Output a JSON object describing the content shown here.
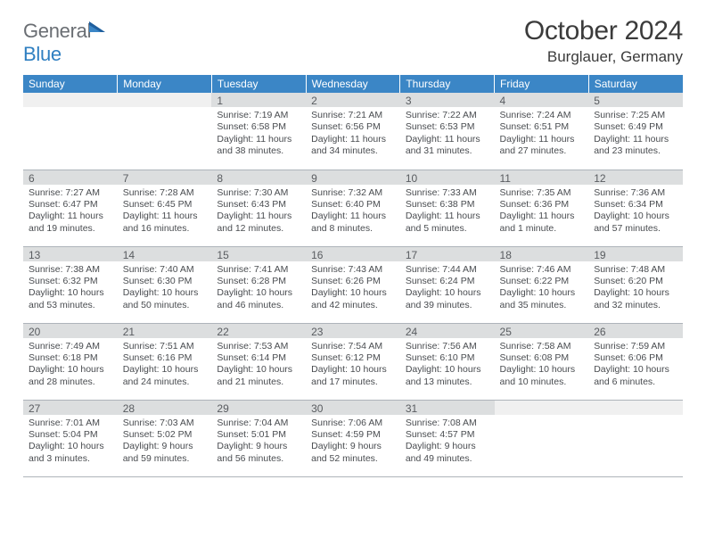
{
  "brand": {
    "part1": "General",
    "part2": "Blue"
  },
  "title": "October 2024",
  "location": "Burglauer, Germany",
  "colors": {
    "header_bg": "#3b86c6",
    "header_fg": "#ffffff",
    "daynum_bg": "#dcdedf",
    "daynum_fg": "#595c60",
    "text": "#494c50",
    "rule": "#aeb4ba",
    "logo_gray": "#6a6e73",
    "logo_blue": "#2f7fc1"
  },
  "weekdays": [
    "Sunday",
    "Monday",
    "Tuesday",
    "Wednesday",
    "Thursday",
    "Friday",
    "Saturday"
  ],
  "weeks": [
    [
      null,
      null,
      {
        "n": "1",
        "sr": "Sunrise: 7:19 AM",
        "ss": "Sunset: 6:58 PM",
        "dl": "Daylight: 11 hours and 38 minutes."
      },
      {
        "n": "2",
        "sr": "Sunrise: 7:21 AM",
        "ss": "Sunset: 6:56 PM",
        "dl": "Daylight: 11 hours and 34 minutes."
      },
      {
        "n": "3",
        "sr": "Sunrise: 7:22 AM",
        "ss": "Sunset: 6:53 PM",
        "dl": "Daylight: 11 hours and 31 minutes."
      },
      {
        "n": "4",
        "sr": "Sunrise: 7:24 AM",
        "ss": "Sunset: 6:51 PM",
        "dl": "Daylight: 11 hours and 27 minutes."
      },
      {
        "n": "5",
        "sr": "Sunrise: 7:25 AM",
        "ss": "Sunset: 6:49 PM",
        "dl": "Daylight: 11 hours and 23 minutes."
      }
    ],
    [
      {
        "n": "6",
        "sr": "Sunrise: 7:27 AM",
        "ss": "Sunset: 6:47 PM",
        "dl": "Daylight: 11 hours and 19 minutes."
      },
      {
        "n": "7",
        "sr": "Sunrise: 7:28 AM",
        "ss": "Sunset: 6:45 PM",
        "dl": "Daylight: 11 hours and 16 minutes."
      },
      {
        "n": "8",
        "sr": "Sunrise: 7:30 AM",
        "ss": "Sunset: 6:43 PM",
        "dl": "Daylight: 11 hours and 12 minutes."
      },
      {
        "n": "9",
        "sr": "Sunrise: 7:32 AM",
        "ss": "Sunset: 6:40 PM",
        "dl": "Daylight: 11 hours and 8 minutes."
      },
      {
        "n": "10",
        "sr": "Sunrise: 7:33 AM",
        "ss": "Sunset: 6:38 PM",
        "dl": "Daylight: 11 hours and 5 minutes."
      },
      {
        "n": "11",
        "sr": "Sunrise: 7:35 AM",
        "ss": "Sunset: 6:36 PM",
        "dl": "Daylight: 11 hours and 1 minute."
      },
      {
        "n": "12",
        "sr": "Sunrise: 7:36 AM",
        "ss": "Sunset: 6:34 PM",
        "dl": "Daylight: 10 hours and 57 minutes."
      }
    ],
    [
      {
        "n": "13",
        "sr": "Sunrise: 7:38 AM",
        "ss": "Sunset: 6:32 PM",
        "dl": "Daylight: 10 hours and 53 minutes."
      },
      {
        "n": "14",
        "sr": "Sunrise: 7:40 AM",
        "ss": "Sunset: 6:30 PM",
        "dl": "Daylight: 10 hours and 50 minutes."
      },
      {
        "n": "15",
        "sr": "Sunrise: 7:41 AM",
        "ss": "Sunset: 6:28 PM",
        "dl": "Daylight: 10 hours and 46 minutes."
      },
      {
        "n": "16",
        "sr": "Sunrise: 7:43 AM",
        "ss": "Sunset: 6:26 PM",
        "dl": "Daylight: 10 hours and 42 minutes."
      },
      {
        "n": "17",
        "sr": "Sunrise: 7:44 AM",
        "ss": "Sunset: 6:24 PM",
        "dl": "Daylight: 10 hours and 39 minutes."
      },
      {
        "n": "18",
        "sr": "Sunrise: 7:46 AM",
        "ss": "Sunset: 6:22 PM",
        "dl": "Daylight: 10 hours and 35 minutes."
      },
      {
        "n": "19",
        "sr": "Sunrise: 7:48 AM",
        "ss": "Sunset: 6:20 PM",
        "dl": "Daylight: 10 hours and 32 minutes."
      }
    ],
    [
      {
        "n": "20",
        "sr": "Sunrise: 7:49 AM",
        "ss": "Sunset: 6:18 PM",
        "dl": "Daylight: 10 hours and 28 minutes."
      },
      {
        "n": "21",
        "sr": "Sunrise: 7:51 AM",
        "ss": "Sunset: 6:16 PM",
        "dl": "Daylight: 10 hours and 24 minutes."
      },
      {
        "n": "22",
        "sr": "Sunrise: 7:53 AM",
        "ss": "Sunset: 6:14 PM",
        "dl": "Daylight: 10 hours and 21 minutes."
      },
      {
        "n": "23",
        "sr": "Sunrise: 7:54 AM",
        "ss": "Sunset: 6:12 PM",
        "dl": "Daylight: 10 hours and 17 minutes."
      },
      {
        "n": "24",
        "sr": "Sunrise: 7:56 AM",
        "ss": "Sunset: 6:10 PM",
        "dl": "Daylight: 10 hours and 13 minutes."
      },
      {
        "n": "25",
        "sr": "Sunrise: 7:58 AM",
        "ss": "Sunset: 6:08 PM",
        "dl": "Daylight: 10 hours and 10 minutes."
      },
      {
        "n": "26",
        "sr": "Sunrise: 7:59 AM",
        "ss": "Sunset: 6:06 PM",
        "dl": "Daylight: 10 hours and 6 minutes."
      }
    ],
    [
      {
        "n": "27",
        "sr": "Sunrise: 7:01 AM",
        "ss": "Sunset: 5:04 PM",
        "dl": "Daylight: 10 hours and 3 minutes."
      },
      {
        "n": "28",
        "sr": "Sunrise: 7:03 AM",
        "ss": "Sunset: 5:02 PM",
        "dl": "Daylight: 9 hours and 59 minutes."
      },
      {
        "n": "29",
        "sr": "Sunrise: 7:04 AM",
        "ss": "Sunset: 5:01 PM",
        "dl": "Daylight: 9 hours and 56 minutes."
      },
      {
        "n": "30",
        "sr": "Sunrise: 7:06 AM",
        "ss": "Sunset: 4:59 PM",
        "dl": "Daylight: 9 hours and 52 minutes."
      },
      {
        "n": "31",
        "sr": "Sunrise: 7:08 AM",
        "ss": "Sunset: 4:57 PM",
        "dl": "Daylight: 9 hours and 49 minutes."
      },
      null,
      null
    ]
  ]
}
